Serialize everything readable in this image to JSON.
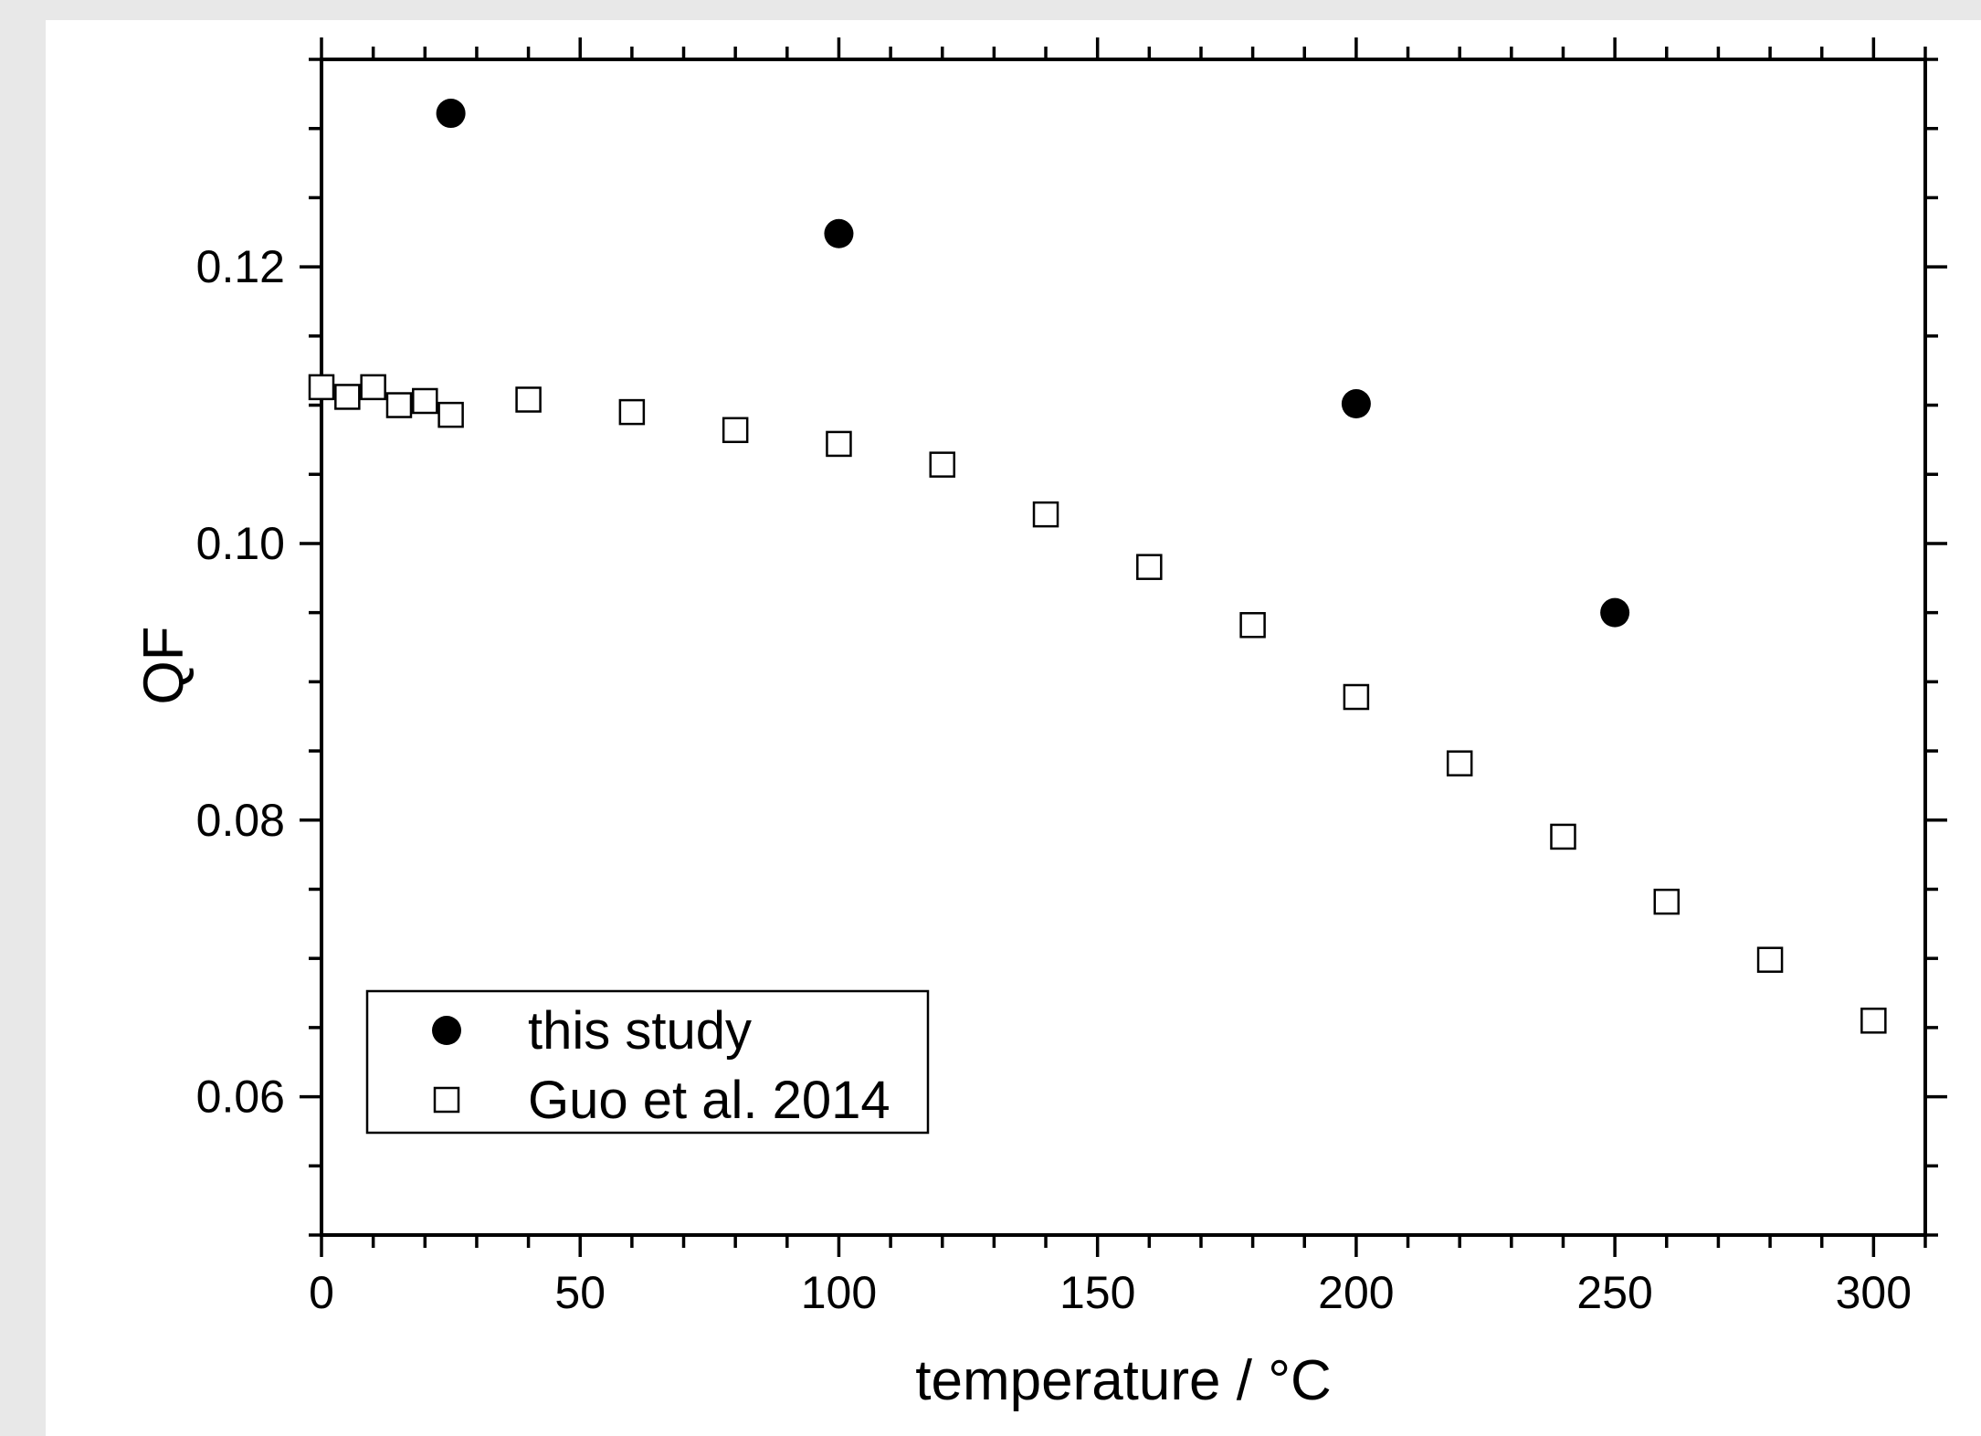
{
  "chart_data": {
    "type": "scatter",
    "title": "",
    "xlabel": "temperature / °C",
    "ylabel": "QF",
    "xlim": [
      0,
      310
    ],
    "ylim": [
      0.05,
      0.135
    ],
    "x_ticks": [
      0,
      50,
      100,
      150,
      200,
      250,
      300
    ],
    "x_tick_labels": [
      "0",
      "50",
      "100",
      "150",
      "200",
      "250",
      "300"
    ],
    "y_ticks": [
      0.06,
      0.08,
      0.1,
      0.12
    ],
    "y_tick_labels": [
      "0.06",
      "0.08",
      "0.10",
      "0.12"
    ],
    "grid": false,
    "legend_position": "bottom-left",
    "series": [
      {
        "name": "this study",
        "marker": "filled-circle",
        "color": "#000000",
        "x": [
          25,
          100,
          200,
          250
        ],
        "y": [
          0.1311,
          0.1224,
          0.1101,
          0.095
        ]
      },
      {
        "name": "Guo et al. 2014",
        "marker": "open-square",
        "color": "#000000",
        "x": [
          0,
          5,
          10,
          15,
          20,
          25,
          40,
          60,
          80,
          100,
          120,
          140,
          160,
          180,
          200,
          220,
          240,
          260,
          280,
          300
        ],
        "y": [
          0.1113,
          0.1106,
          0.1113,
          0.11,
          0.1103,
          0.1093,
          0.1104,
          0.1095,
          0.1082,
          0.1072,
          0.1057,
          0.1021,
          0.0983,
          0.0941,
          0.0889,
          0.0841,
          0.0788,
          0.0741,
          0.0699,
          0.0655
        ]
      }
    ]
  }
}
